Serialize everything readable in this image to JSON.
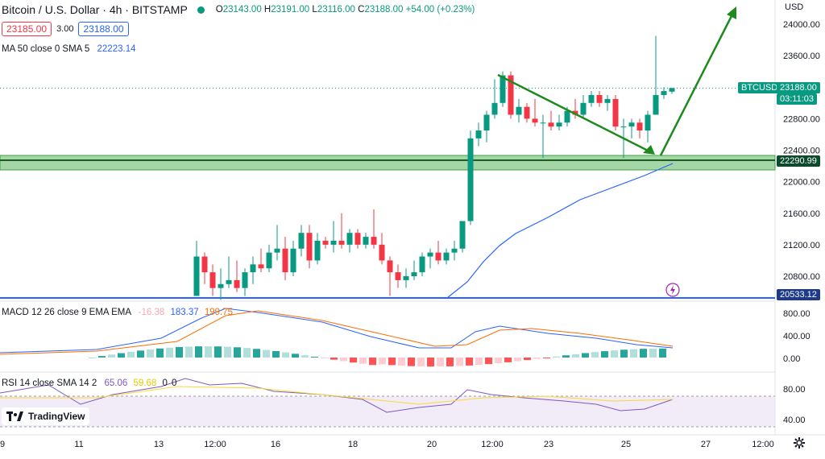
{
  "header": {
    "symbol_title": "Bitcoin / U.S. Dollar · 4h · BITSTAMP",
    "ohlc": {
      "o_label": "O",
      "o": "23143.00",
      "h_label": "H",
      "h": "23191.00",
      "l_label": "L",
      "l": "23116.00",
      "c_label": "C",
      "c": "23188.00",
      "change": "+54.00 (+0.23%)"
    },
    "status_color": "#089981"
  },
  "quote": {
    "sell": "23185.00",
    "spread": "3.00",
    "buy": "23188.00"
  },
  "ma_indicator": {
    "label": "MA 50 close 0 SMA 5",
    "value": "22223.14"
  },
  "price_axis": {
    "currency": "USD",
    "ticks": [
      "24000.00",
      "23600.00",
      "22800.00",
      "22400.00",
      "22000.00",
      "21600.00",
      "21200.00",
      "20800.00"
    ]
  },
  "tags": {
    "symbol": "BTCUSD",
    "last_price": "23188.00",
    "countdown": "03:11:03",
    "support": "22290.99",
    "low_line": "20533.12"
  },
  "macd": {
    "label": "MACD 12 26 close 9 EMA EMA",
    "hist": "-16.38",
    "macd": "183.37",
    "signal": "199.75",
    "ticks": [
      "800.00",
      "400.00",
      "0.00"
    ]
  },
  "rsi": {
    "label": "RSI 14 close SMA 14 2",
    "rsi": "65.06",
    "sma": "59.68",
    "extra1": "0",
    "extra2": "0",
    "ticks": [
      "80.00",
      "40.00"
    ]
  },
  "time_axis": [
    "9",
    "11",
    "13",
    "12:00",
    "16",
    "18",
    "20",
    "12:00",
    "23",
    "25",
    "27",
    "12:00"
  ],
  "logo_text": "TradingView",
  "colors": {
    "up": "#089981",
    "down": "#f23645",
    "ma": "#2962ff",
    "signal": "#ff6d00",
    "trend": "#1e8a1e",
    "support_zone": "#a5d6a7"
  },
  "chart_data": {
    "type": "candlestick",
    "title": "Bitcoin / U.S. Dollar · 4h · BITSTAMP",
    "ylim": [
      20500,
      24200
    ],
    "candles": [
      {
        "o": 20550,
        "h": 21250,
        "l": 20550,
        "c": 21050
      },
      {
        "o": 21050,
        "h": 21100,
        "l": 20700,
        "c": 20850
      },
      {
        "o": 20850,
        "h": 20950,
        "l": 20550,
        "c": 20650
      },
      {
        "o": 20650,
        "h": 20900,
        "l": 20500,
        "c": 20700
      },
      {
        "o": 20700,
        "h": 21050,
        "l": 20650,
        "c": 20750
      },
      {
        "o": 20750,
        "h": 21000,
        "l": 20600,
        "c": 20650
      },
      {
        "o": 20650,
        "h": 20900,
        "l": 20550,
        "c": 20850
      },
      {
        "o": 20850,
        "h": 21050,
        "l": 20700,
        "c": 20950
      },
      {
        "o": 20950,
        "h": 21150,
        "l": 20850,
        "c": 20900
      },
      {
        "o": 20900,
        "h": 21200,
        "l": 20850,
        "c": 21100
      },
      {
        "o": 21100,
        "h": 21450,
        "l": 21000,
        "c": 21150
      },
      {
        "o": 21150,
        "h": 21300,
        "l": 20750,
        "c": 20850
      },
      {
        "o": 20850,
        "h": 21250,
        "l": 20800,
        "c": 21150
      },
      {
        "o": 21150,
        "h": 21450,
        "l": 21050,
        "c": 21350
      },
      {
        "o": 21350,
        "h": 21450,
        "l": 20900,
        "c": 21000
      },
      {
        "o": 21000,
        "h": 21350,
        "l": 20950,
        "c": 21250
      },
      {
        "o": 21250,
        "h": 21300,
        "l": 21150,
        "c": 21200
      },
      {
        "o": 21200,
        "h": 21500,
        "l": 21100,
        "c": 21250
      },
      {
        "o": 21250,
        "h": 21600,
        "l": 21150,
        "c": 21200
      },
      {
        "o": 21200,
        "h": 21400,
        "l": 21100,
        "c": 21350
      },
      {
        "o": 21350,
        "h": 21400,
        "l": 21150,
        "c": 21200
      },
      {
        "o": 21200,
        "h": 21350,
        "l": 21150,
        "c": 21300
      },
      {
        "o": 21300,
        "h": 21650,
        "l": 21150,
        "c": 21200
      },
      {
        "o": 21200,
        "h": 21350,
        "l": 20950,
        "c": 21000
      },
      {
        "o": 21000,
        "h": 21050,
        "l": 20550,
        "c": 20850
      },
      {
        "o": 20850,
        "h": 20950,
        "l": 20650,
        "c": 20750
      },
      {
        "o": 20750,
        "h": 20900,
        "l": 20650,
        "c": 20800
      },
      {
        "o": 20800,
        "h": 21000,
        "l": 20750,
        "c": 20850
      },
      {
        "o": 20850,
        "h": 21100,
        "l": 20800,
        "c": 21050
      },
      {
        "o": 21050,
        "h": 21150,
        "l": 20900,
        "c": 21100
      },
      {
        "o": 21100,
        "h": 21250,
        "l": 20950,
        "c": 21000
      },
      {
        "o": 21000,
        "h": 21150,
        "l": 20950,
        "c": 21100
      },
      {
        "o": 21100,
        "h": 21250,
        "l": 21000,
        "c": 21150
      },
      {
        "o": 21150,
        "h": 21500,
        "l": 21100,
        "c": 21500
      },
      {
        "o": 21500,
        "h": 22650,
        "l": 21450,
        "c": 22550
      },
      {
        "o": 22550,
        "h": 22750,
        "l": 22450,
        "c": 22650
      },
      {
        "o": 22650,
        "h": 22900,
        "l": 22500,
        "c": 22850
      },
      {
        "o": 22850,
        "h": 23300,
        "l": 22800,
        "c": 23000
      },
      {
        "o": 23000,
        "h": 23400,
        "l": 22950,
        "c": 23350
      },
      {
        "o": 23350,
        "h": 23400,
        "l": 22800,
        "c": 22850
      },
      {
        "o": 22850,
        "h": 23050,
        "l": 22750,
        "c": 22950
      },
      {
        "o": 22950,
        "h": 23000,
        "l": 22750,
        "c": 22800
      },
      {
        "o": 22800,
        "h": 23050,
        "l": 22700,
        "c": 22750
      },
      {
        "o": 22750,
        "h": 22850,
        "l": 22300,
        "c": 22750
      },
      {
        "o": 22750,
        "h": 22900,
        "l": 22650,
        "c": 22700
      },
      {
        "o": 22700,
        "h": 22850,
        "l": 22650,
        "c": 22750
      },
      {
        "o": 22750,
        "h": 22950,
        "l": 22700,
        "c": 22900
      },
      {
        "o": 22900,
        "h": 23050,
        "l": 22800,
        "c": 22850
      },
      {
        "o": 22850,
        "h": 23100,
        "l": 22800,
        "c": 23000
      },
      {
        "o": 23000,
        "h": 23150,
        "l": 22950,
        "c": 23100
      },
      {
        "o": 23100,
        "h": 23150,
        "l": 22950,
        "c": 23000
      },
      {
        "o": 23000,
        "h": 23100,
        "l": 22900,
        "c": 23050
      },
      {
        "o": 23050,
        "h": 23100,
        "l": 22650,
        "c": 22700
      },
      {
        "o": 22700,
        "h": 22800,
        "l": 22300,
        "c": 22700
      },
      {
        "o": 22700,
        "h": 22800,
        "l": 22550,
        "c": 22750
      },
      {
        "o": 22750,
        "h": 22800,
        "l": 22550,
        "c": 22650
      },
      {
        "o": 22650,
        "h": 22900,
        "l": 22500,
        "c": 22850
      },
      {
        "o": 22850,
        "h": 23850,
        "l": 22850,
        "c": 23100
      },
      {
        "o": 23100,
        "h": 23200,
        "l": 23050,
        "c": 23150
      },
      {
        "o": 23143,
        "h": 23191,
        "l": 23116,
        "c": 23188
      }
    ]
  }
}
